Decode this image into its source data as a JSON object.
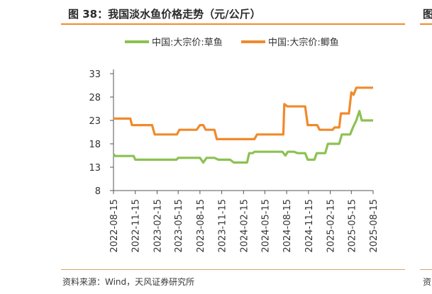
{
  "figure": {
    "title": "图 38：我国淡水鱼价格走势（元/公斤）",
    "source": "资料来源：Wind，天风证券研究所",
    "right_title_fragment": "图",
    "right_source_fragment": "资"
  },
  "colors": {
    "accent": "#f08a2c",
    "grass_carp": "#8cc152",
    "crucian_carp": "#f08a2c",
    "axis": "#555555"
  },
  "chart_data": {
    "type": "line",
    "title": "",
    "xlabel": "",
    "ylabel": "",
    "ylim": [
      8,
      33
    ],
    "yticks": [
      8,
      13,
      18,
      23,
      28,
      33
    ],
    "xlim": [
      "2022-08-15",
      "2025-08-15"
    ],
    "xticks": [
      "2022-08-15",
      "2022-11-15",
      "2023-02-15",
      "2023-05-15",
      "2023-08-15",
      "2023-11-15",
      "2024-02-15",
      "2024-05-15",
      "2024-08-15",
      "2024-11-15",
      "2025-02-15",
      "2025-05-15",
      "2025-08-15"
    ],
    "grid": false,
    "legend_position": "top",
    "series": [
      {
        "name": "中国:大宗价:草鱼",
        "color": "#8cc152",
        "points": [
          [
            "2022-08-15",
            15.8
          ],
          [
            "2022-08-22",
            15.4
          ],
          [
            "2022-11-08",
            15.4
          ],
          [
            "2022-11-15",
            14.6
          ],
          [
            "2023-02-15",
            14.6
          ],
          [
            "2023-05-08",
            14.6
          ],
          [
            "2023-05-15",
            15.0
          ],
          [
            "2023-08-15",
            15.0
          ],
          [
            "2023-08-29",
            14.0
          ],
          [
            "2023-09-12",
            15.0
          ],
          [
            "2023-10-15",
            15.0
          ],
          [
            "2023-11-01",
            14.6
          ],
          [
            "2023-12-20",
            14.6
          ],
          [
            "2024-01-05",
            14.0
          ],
          [
            "2024-03-01",
            14.0
          ],
          [
            "2024-03-10",
            16.0
          ],
          [
            "2024-03-25",
            16.0
          ],
          [
            "2024-04-01",
            16.3
          ],
          [
            "2024-07-28",
            16.3
          ],
          [
            "2024-08-10",
            15.5
          ],
          [
            "2024-08-20",
            16.3
          ],
          [
            "2024-09-15",
            16.3
          ],
          [
            "2024-10-01",
            16.0
          ],
          [
            "2024-11-01",
            16.0
          ],
          [
            "2024-11-12",
            14.6
          ],
          [
            "2024-12-10",
            14.6
          ],
          [
            "2024-12-20",
            16.0
          ],
          [
            "2025-01-25",
            16.0
          ],
          [
            "2025-02-05",
            18.0
          ],
          [
            "2025-03-25",
            18.0
          ],
          [
            "2025-04-05",
            20.0
          ],
          [
            "2025-05-10",
            20.0
          ],
          [
            "2025-05-22",
            21.5
          ],
          [
            "2025-06-05",
            23.0
          ],
          [
            "2025-06-18",
            25.0
          ],
          [
            "2025-06-28",
            23.0
          ],
          [
            "2025-08-15",
            23.0
          ]
        ]
      },
      {
        "name": "中国:大宗价:鲫鱼",
        "color": "#f08a2c",
        "points": [
          [
            "2022-08-15",
            23.4
          ],
          [
            "2022-10-25",
            23.4
          ],
          [
            "2022-11-01",
            22.0
          ],
          [
            "2023-01-25",
            22.0
          ],
          [
            "2023-02-05",
            20.0
          ],
          [
            "2023-05-10",
            20.0
          ],
          [
            "2023-05-20",
            21.0
          ],
          [
            "2023-08-01",
            21.0
          ],
          [
            "2023-08-15",
            22.0
          ],
          [
            "2023-08-29",
            22.0
          ],
          [
            "2023-09-08",
            21.0
          ],
          [
            "2023-10-15",
            21.0
          ],
          [
            "2023-10-25",
            19.0
          ],
          [
            "2024-04-01",
            19.0
          ],
          [
            "2024-04-12",
            20.0
          ],
          [
            "2024-08-01",
            20.0
          ],
          [
            "2024-08-05",
            26.5
          ],
          [
            "2024-08-18",
            26.0
          ],
          [
            "2024-11-01",
            26.0
          ],
          [
            "2024-11-12",
            22.0
          ],
          [
            "2024-12-22",
            22.0
          ],
          [
            "2025-01-01",
            21.0
          ],
          [
            "2025-02-25",
            21.0
          ],
          [
            "2025-03-05",
            21.5
          ],
          [
            "2025-03-25",
            21.5
          ],
          [
            "2025-04-01",
            24.5
          ],
          [
            "2025-05-05",
            24.5
          ],
          [
            "2025-05-15",
            29.0
          ],
          [
            "2025-05-25",
            28.5
          ],
          [
            "2025-06-05",
            30.0
          ],
          [
            "2025-08-15",
            30.0
          ]
        ]
      }
    ]
  }
}
